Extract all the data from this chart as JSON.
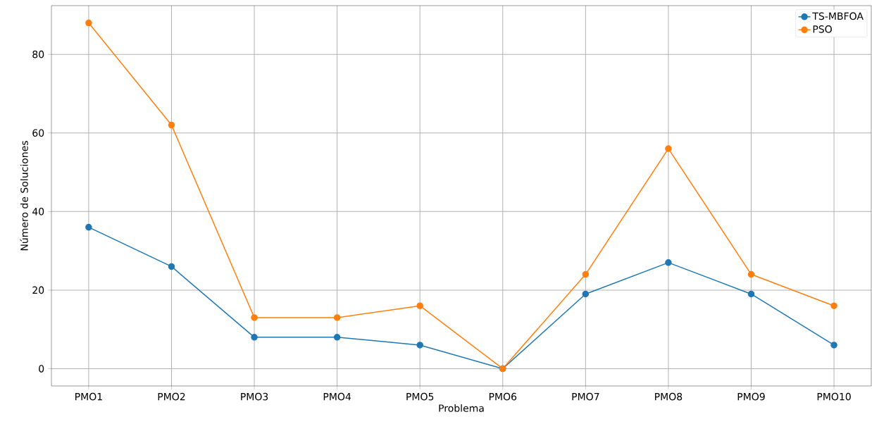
{
  "chart_data": {
    "type": "line",
    "xlabel": "Problema",
    "ylabel": "Número de Soluciones",
    "categories": [
      "PMO1",
      "PMO2",
      "PMO3",
      "PMO4",
      "PMO5",
      "PMO6",
      "PMO7",
      "PMO8",
      "PMO9",
      "PMO10"
    ],
    "series": [
      {
        "name": "TS-MBFOA",
        "color": "#1f77b4",
        "values": [
          36,
          26,
          8,
          8,
          6,
          0,
          19,
          27,
          19,
          6
        ]
      },
      {
        "name": "PSO",
        "color": "#ff7f0e",
        "values": [
          88,
          62,
          13,
          13,
          16,
          0,
          24,
          56,
          24,
          16
        ]
      }
    ],
    "ylim": [
      -4.4,
      92.4
    ],
    "yticks": [
      0,
      20,
      40,
      60,
      80
    ],
    "grid": true,
    "legend": "top right",
    "marker": "circle",
    "line_style": "solid"
  }
}
